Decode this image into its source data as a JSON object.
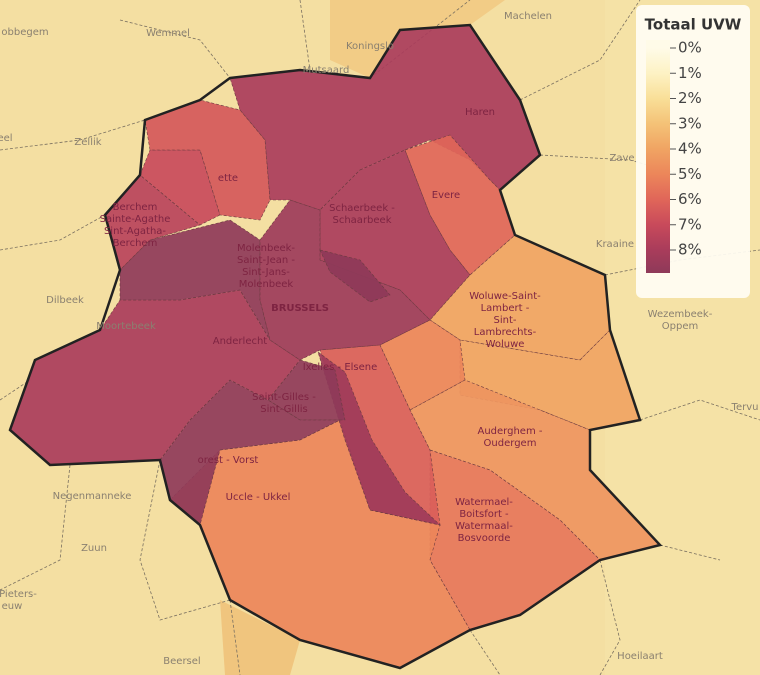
{
  "legend": {
    "title": "Totaal UVW",
    "ticks": [
      {
        "value": 0,
        "label": "0%"
      },
      {
        "value": 1,
        "label": "1%"
      },
      {
        "value": 2,
        "label": "2%"
      },
      {
        "value": 3,
        "label": "3%"
      },
      {
        "value": 4,
        "label": "4%"
      },
      {
        "value": 5,
        "label": "5%"
      },
      {
        "value": 6,
        "label": "6%"
      },
      {
        "value": 7,
        "label": "7%"
      },
      {
        "value": 8,
        "label": "8%"
      }
    ],
    "colors": [
      "#fffbe8",
      "#fdf2c4",
      "#f9df98",
      "#f4c277",
      "#f0a463",
      "#ec865a",
      "#e06659",
      "#c84a5b",
      "#a93c5b"
    ],
    "end_color": "#8e3a59"
  },
  "municipalities": [
    {
      "value": 8,
      "label": [
        "Haren"
      ]
    },
    {
      "value": 6,
      "label": [
        "Evere"
      ]
    },
    {
      "value": 8,
      "label": [
        "Schaerbeek -",
        "Schaarbeek"
      ]
    },
    {
      "value": 4,
      "label": [
        "Woluwe-Saint-",
        "Lambert -",
        "Sint-",
        "Lambrechts-",
        "Woluwe"
      ]
    },
    {
      "value": 4
    },
    {
      "value": 5
    },
    {
      "value": 4.5,
      "label": [
        "Auderghem -",
        "Oudergem"
      ]
    },
    {
      "value": 5.5,
      "label": [
        "Watermael-",
        "Boitsfort -",
        "Watermaal-",
        "Bosvoorde"
      ]
    },
    {
      "value": 5,
      "label": [
        "Uccle - Ukkel"
      ]
    },
    {
      "value": 6.3,
      "label": [
        "Ixelles - Elsene"
      ]
    },
    {
      "value": 8.4
    },
    {
      "value": 9,
      "label": [
        "Saint-Gilles -",
        "Sint-Gillis"
      ]
    },
    {
      "value": 9,
      "label": [
        "orest - Vorst"
      ]
    },
    {
      "value": 8,
      "label": [
        "Anderlecht"
      ]
    },
    {
      "value": 9,
      "label": [
        "Molenbeek-",
        "Saint-Jean -",
        "Sint-Jans-",
        "Molenbeek"
      ]
    },
    {
      "value": 7.5,
      "label": [
        "Berchem",
        "Sainte-Agathe",
        "Sint-Agatha-",
        "Berchem"
      ]
    },
    {
      "value": 7
    },
    {
      "value": 6.5,
      "label": [
        "ette"
      ]
    },
    {
      "value": 8.5,
      "label": [
        "BRUSSELS"
      ]
    },
    {
      "value": 9
    }
  ],
  "places": [
    "Wemmel",
    "Machelen",
    "Koningslo",
    "Mutsaard",
    "obbegem",
    "Zellik",
    "eel",
    "Dilbeek",
    "Moortebeek",
    "Zave",
    "Kraaine",
    "Wezembeek-",
    "Oppem",
    "Tervu",
    "Negenmanneke",
    "Zuun",
    "Pieters-",
    "euw",
    "Beersel",
    "Hoeilaart"
  ]
}
